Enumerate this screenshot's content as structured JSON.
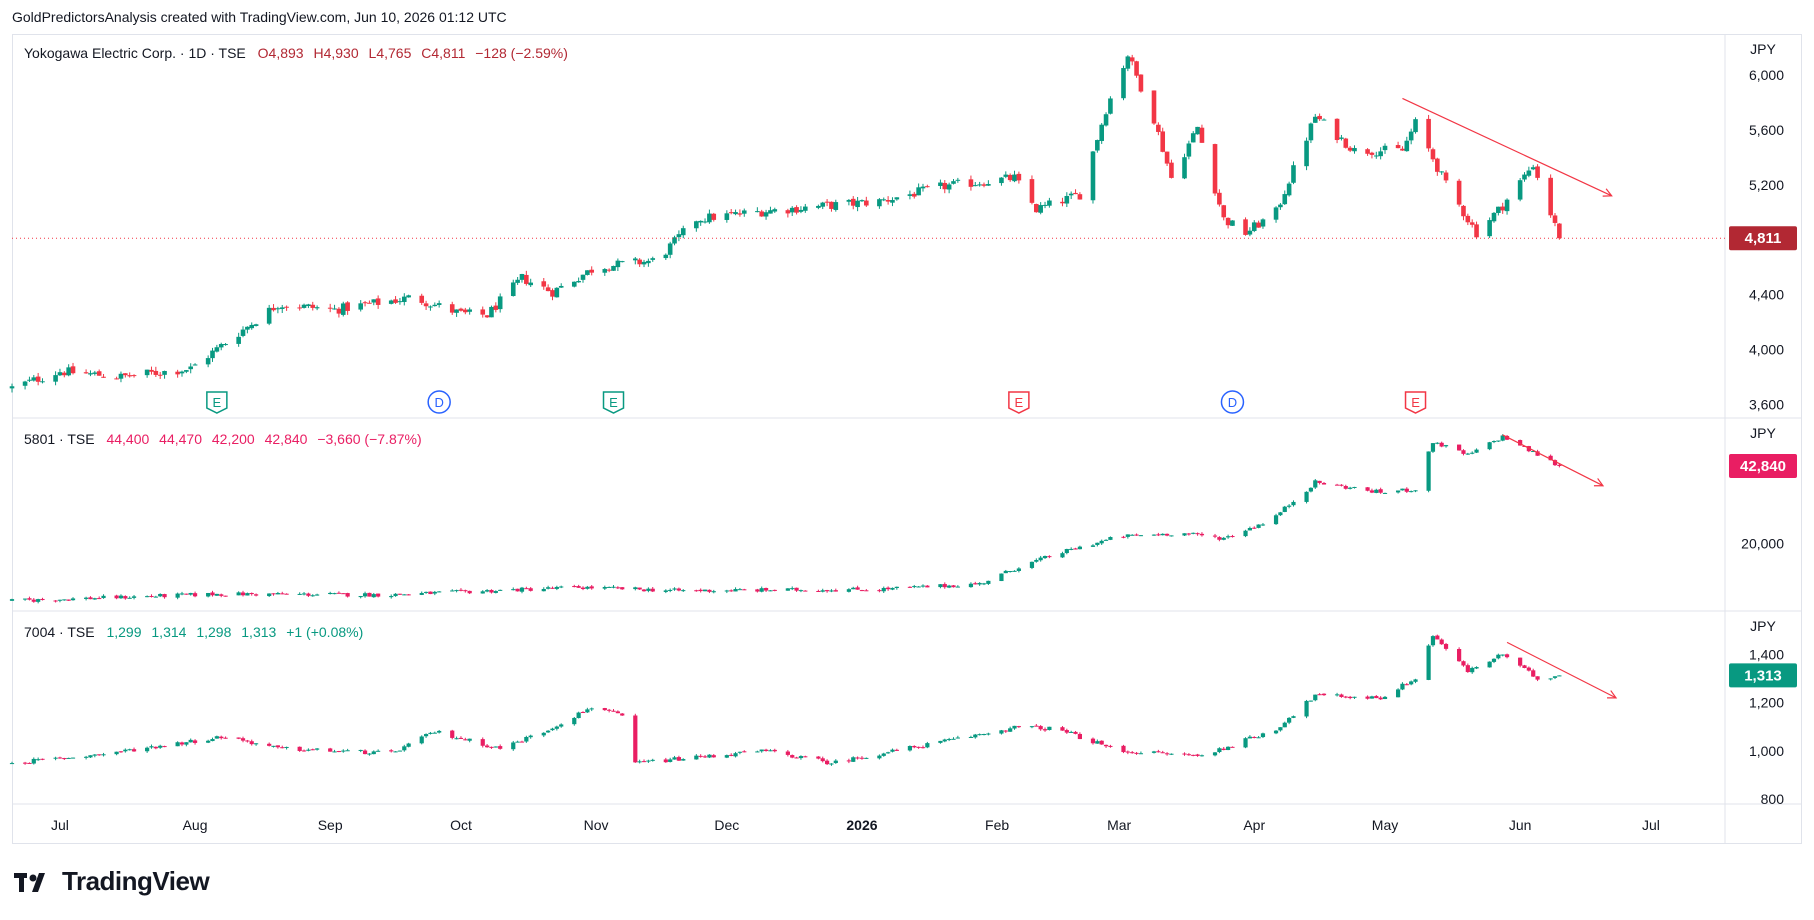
{
  "header": {
    "text": "GoldPredictorsAnalysis created with TradingView.com, Jun 10, 2026 01:12 UTC"
  },
  "brand": {
    "name": "TradingView",
    "icon": "tradingview-logo-icon"
  },
  "colors": {
    "up": "#089981",
    "down": "#f23645",
    "up2": "#26a69a",
    "down2": "#e91e63",
    "dark_down": "#b22833",
    "trend": "#f23645"
  },
  "chart_data": [
    {
      "type": "candlestick",
      "pane": "top",
      "legend": {
        "symbol": "Yokogawa Electric Corp. · 1D · TSE",
        "open": "O4,893",
        "high": "H4,930",
        "low": "L4,765",
        "close": "C4,811",
        "change": "−128 (−2.59%)"
      },
      "currency": "JPY",
      "y_ticks": [
        "6,000",
        "5,600",
        "5,200",
        "4,800",
        "4,400",
        "4,000",
        "3,600"
      ],
      "y_tick_values": [
        6000,
        5600,
        5200,
        4800,
        4400,
        4000,
        3600
      ],
      "ylim": [
        3500,
        6300
      ],
      "last_price": "4,811",
      "last_value": 4811,
      "events": [
        {
          "label": "E",
          "kind": "earnings-past",
          "date": "2025-08-06"
        },
        {
          "label": "D",
          "kind": "dividend",
          "date": "2025-09-26"
        },
        {
          "label": "E",
          "kind": "earnings-past",
          "date": "2025-11-05"
        },
        {
          "label": "E",
          "kind": "earnings-future",
          "date": "2026-02-06"
        },
        {
          "label": "D",
          "kind": "dividend",
          "date": "2026-03-27"
        },
        {
          "label": "E",
          "kind": "earnings-future",
          "date": "2026-05-08"
        }
      ],
      "trendline": {
        "from": [
          "2026-05-05",
          5830
        ],
        "to": [
          "2026-06-22",
          5120
        ]
      },
      "anchors": [
        [
          "2025-06-20",
          3720
        ],
        [
          "2025-07-01",
          3840
        ],
        [
          "2025-07-15",
          3800
        ],
        [
          "2025-07-31",
          3860
        ],
        [
          "2025-08-08",
          4050
        ],
        [
          "2025-08-20",
          4330
        ],
        [
          "2025-09-02",
          4290
        ],
        [
          "2025-09-20",
          4380
        ],
        [
          "2025-10-01",
          4260
        ],
        [
          "2025-10-07",
          4250
        ],
        [
          "2025-10-15",
          4520
        ],
        [
          "2025-10-22",
          4420
        ],
        [
          "2025-11-01",
          4600
        ],
        [
          "2025-11-15",
          4650
        ],
        [
          "2025-11-24",
          4950
        ],
        [
          "2025-12-10",
          5010
        ],
        [
          "2026-01-05",
          5080
        ],
        [
          "2026-01-20",
          5190
        ],
        [
          "2026-02-05",
          5250
        ],
        [
          "2026-02-10",
          5020
        ],
        [
          "2026-02-20",
          5130
        ],
        [
          "2026-02-26",
          5750
        ],
        [
          "2026-03-03",
          6150
        ],
        [
          "2026-03-09",
          5680
        ],
        [
          "2026-03-13",
          5250
        ],
        [
          "2026-03-19",
          5620
        ],
        [
          "2026-03-25",
          4950
        ],
        [
          "2026-03-30",
          4850
        ],
        [
          "2026-04-06",
          5000
        ],
        [
          "2026-04-15",
          5700
        ],
        [
          "2026-04-24",
          5450
        ],
        [
          "2026-05-05",
          5450
        ],
        [
          "2026-05-08",
          5650
        ],
        [
          "2026-05-15",
          5200
        ],
        [
          "2026-05-22",
          4850
        ],
        [
          "2026-05-28",
          5050
        ],
        [
          "2026-06-04",
          5350
        ],
        [
          "2026-06-10",
          4811
        ]
      ]
    },
    {
      "type": "candlestick",
      "pane": "middle",
      "legend": {
        "symbol": "5801 · TSE",
        "open": "44,400",
        "high": "44,470",
        "low": "42,200",
        "close": "42,840",
        "change": "−3,660 (−7.87%)"
      },
      "currency": "JPY",
      "y_ticks": [
        "20,000"
      ],
      "y_tick_values": [
        20000
      ],
      "ylim": [
        0,
        57000
      ],
      "last_price": "42,840",
      "last_value": 42840,
      "trendline": {
        "from": [
          "2026-05-28",
          52000
        ],
        "to": [
          "2026-06-20",
          37000
        ]
      },
      "anchors": [
        [
          "2025-06-20",
          3000
        ],
        [
          "2025-08-06",
          5000
        ],
        [
          "2025-09-15",
          4800
        ],
        [
          "2025-10-28",
          7000
        ],
        [
          "2025-11-20",
          6000
        ],
        [
          "2026-01-05",
          6400
        ],
        [
          "2026-01-28",
          8000
        ],
        [
          "2026-02-06",
          13000
        ],
        [
          "2026-02-15",
          17000
        ],
        [
          "2026-03-01",
          22000
        ],
        [
          "2026-03-15",
          23000
        ],
        [
          "2026-03-25",
          21500
        ],
        [
          "2026-04-05",
          27000
        ],
        [
          "2026-04-15",
          38000
        ],
        [
          "2026-04-30",
          35000
        ],
        [
          "2026-05-08",
          36000
        ],
        [
          "2026-05-12",
          50000
        ],
        [
          "2026-05-20",
          46000
        ],
        [
          "2026-05-28",
          51500
        ],
        [
          "2026-06-10",
          42840
        ]
      ]
    },
    {
      "type": "candlestick",
      "pane": "bottom",
      "legend": {
        "symbol": "7004 · TSE",
        "open": "1,299",
        "high": "1,314",
        "low": "1,298",
        "close": "1,313",
        "change": "+1 (+0.08%)"
      },
      "currency": "JPY",
      "y_ticks": [
        "1,400",
        "1,200",
        "1,000",
        "800"
      ],
      "y_tick_values": [
        1400,
        1200,
        1000,
        800
      ],
      "ylim": [
        780,
        1580
      ],
      "last_price": "1,313",
      "last_value": 1313,
      "trendline": {
        "from": [
          "2026-05-29",
          1450
        ],
        "to": [
          "2026-06-23",
          1220
        ]
      },
      "anchors": [
        [
          "2025-06-20",
          950
        ],
        [
          "2025-07-10",
          985
        ],
        [
          "2025-08-08",
          1060
        ],
        [
          "2025-08-20",
          1010
        ],
        [
          "2025-09-15",
          990
        ],
        [
          "2025-09-25",
          1080
        ],
        [
          "2025-10-10",
          1010
        ],
        [
          "2025-10-20",
          1080
        ],
        [
          "2025-11-01",
          1190
        ],
        [
          "2025-11-07",
          1140
        ],
        [
          "2025-11-10",
          950
        ],
        [
          "2025-12-10",
          1000
        ],
        [
          "2025-12-25",
          950
        ],
        [
          "2026-01-20",
          1040
        ],
        [
          "2026-02-06",
          1100
        ],
        [
          "2026-02-15",
          1090
        ],
        [
          "2026-03-01",
          1000
        ],
        [
          "2026-03-20",
          980
        ],
        [
          "2026-04-06",
          1090
        ],
        [
          "2026-04-15",
          1230
        ],
        [
          "2026-04-30",
          1220
        ],
        [
          "2026-05-08",
          1300
        ],
        [
          "2026-05-12",
          1480
        ],
        [
          "2026-05-20",
          1330
        ],
        [
          "2026-05-28",
          1400
        ],
        [
          "2026-06-05",
          1300
        ],
        [
          "2026-06-10",
          1313
        ]
      ]
    }
  ],
  "x_axis": {
    "labels": [
      {
        "text": "Jul",
        "date": "2025-07-01"
      },
      {
        "text": "Aug",
        "date": "2025-08-01"
      },
      {
        "text": "Sep",
        "date": "2025-09-01"
      },
      {
        "text": "Oct",
        "date": "2025-10-01"
      },
      {
        "text": "Nov",
        "date": "2025-11-01"
      },
      {
        "text": "Dec",
        "date": "2025-12-01"
      },
      {
        "text": "2026",
        "date": "2026-01-01",
        "bold": true
      },
      {
        "text": "Feb",
        "date": "2026-02-01"
      },
      {
        "text": "Mar",
        "date": "2026-03-01"
      },
      {
        "text": "Apr",
        "date": "2026-04-01"
      },
      {
        "text": "May",
        "date": "2026-05-01"
      },
      {
        "text": "Jun",
        "date": "2026-06-01"
      },
      {
        "text": "Jul",
        "date": "2026-07-01"
      }
    ],
    "range": [
      "2025-06-20",
      "2026-07-18"
    ]
  }
}
